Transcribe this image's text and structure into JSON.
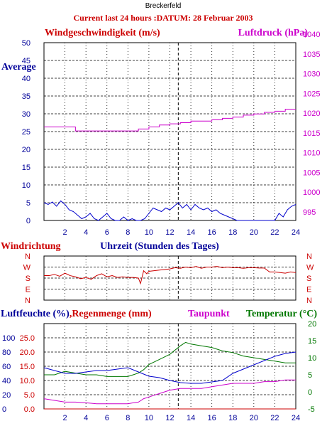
{
  "header": {
    "station": "Breckerfeld",
    "subtitle": "Current last 24 hours :DATUM: 28 Februar 2003"
  },
  "chart_data": [
    {
      "type": "line",
      "title": "",
      "ylabel_left": "Windgeschwindigkeit (m/s)",
      "ylabel_right": "Luftdruck (hPa)",
      "left_marker": "Average",
      "ylim_left": [
        0,
        50
      ],
      "ylim_right": [
        995,
        1040
      ],
      "ticks_left": [
        "0",
        "5",
        "10",
        "15",
        "20",
        "25",
        "30",
        "35",
        "40",
        "45",
        "50"
      ],
      "ticks_right": [
        "995",
        "1000",
        "1005",
        "1010",
        "1015",
        "1020",
        "1025",
        "1030",
        "1035",
        "1040"
      ],
      "xlim": [
        0,
        24
      ],
      "xticks": [
        "2",
        "4",
        "6",
        "8",
        "10",
        "12",
        "14",
        "16",
        "18",
        "20",
        "22",
        "24"
      ],
      "grid": true,
      "now_marker_x": 12.8,
      "series": [
        {
          "name": "Luftdruck (hPa)",
          "axis": "right",
          "color": "#cc00cc",
          "x": [
            0,
            1,
            2,
            2.8,
            3,
            3.3,
            3.5,
            4,
            5,
            6,
            7,
            8,
            8.5,
            9,
            10,
            11,
            12,
            13,
            14,
            15,
            16,
            17,
            18,
            19,
            20,
            21,
            22,
            23,
            24
          ],
          "y": [
            1016.5,
            1016.5,
            1016.5,
            1016.5,
            1015.5,
            1015.5,
            1015.5,
            1015.5,
            1015.5,
            1015.5,
            1015.5,
            1015.5,
            1015.5,
            1016,
            1016.5,
            1017,
            1017.3,
            1017.6,
            1018,
            1018,
            1018.3,
            1018.7,
            1019,
            1019.5,
            1019.8,
            1020.2,
            1020.5,
            1021,
            1021
          ]
        },
        {
          "name": "Windgeschwindigkeit (m/s)",
          "axis": "left",
          "color": "#0000cc",
          "x": [
            0,
            0.4,
            0.8,
            1.2,
            1.6,
            2,
            2.4,
            2.8,
            3.2,
            3.6,
            4,
            4.4,
            4.8,
            5.2,
            5.6,
            6,
            6.4,
            6.8,
            7.2,
            7.6,
            8,
            8.4,
            8.8,
            9.2,
            9.6,
            10,
            10.4,
            10.8,
            11.2,
            11.6,
            12,
            12.4,
            12.8,
            13.2,
            13.6,
            14,
            14.4,
            14.8,
            15.2,
            15.6,
            16,
            16.4,
            16.8,
            17.2,
            17.6,
            18,
            18.4,
            18.8,
            19.2,
            19.6,
            20,
            20.4,
            20.8,
            21.2,
            21.6,
            22,
            22.4,
            22.8,
            23.2,
            23.6,
            24
          ],
          "y": [
            5,
            4.5,
            5.2,
            4,
            5.5,
            4.5,
            3,
            2.5,
            1.5,
            0.5,
            1,
            2,
            0.5,
            0,
            1,
            2,
            0.5,
            0,
            0,
            1,
            0,
            0.5,
            0,
            0,
            0.5,
            2,
            3.5,
            3,
            2.5,
            3.5,
            3,
            4,
            5,
            3.5,
            4.5,
            3,
            4.5,
            3.5,
            3,
            3.5,
            2.5,
            3,
            2,
            1.5,
            1,
            0.5,
            0,
            0,
            0,
            0,
            0,
            0,
            0,
            0,
            0,
            0,
            2,
            1,
            3,
            4,
            4.5
          ]
        }
      ]
    },
    {
      "type": "line",
      "title": "",
      "ylabel_left": "Windrichtung",
      "xlabel": "Uhrzeit (Stunden des Tages)",
      "y_categories_top_to_bottom": [
        "N",
        "W",
        "S",
        "E",
        "N"
      ],
      "grid": true,
      "now_marker_x": 12.8,
      "series": [
        {
          "name": "Windrichtung",
          "color": "#cc0000",
          "x": [
            0,
            0.5,
            1,
            1.5,
            2,
            2.5,
            3,
            3.5,
            4,
            4.5,
            5,
            5.5,
            6,
            6.5,
            7,
            7.5,
            8,
            8.5,
            9,
            9.2,
            9.5,
            9.8,
            10,
            10.5,
            11,
            11.5,
            12,
            12.5,
            13,
            13.5,
            14,
            14.5,
            15,
            15.5,
            16,
            16.5,
            17,
            17.5,
            18,
            18.5,
            19,
            19.5,
            20,
            20.5,
            21,
            21.5,
            22,
            22.5,
            23,
            23.5,
            24
          ],
          "y_compass_deg": [
            200,
            200,
            210,
            195,
            220,
            200,
            190,
            175,
            185,
            170,
            200,
            215,
            190,
            200,
            185,
            190,
            185,
            185,
            180,
            135,
            240,
            215,
            235,
            240,
            245,
            250,
            255,
            265,
            260,
            270,
            265,
            275,
            260,
            270,
            270,
            275,
            265,
            270,
            265,
            265,
            260,
            265,
            265,
            262,
            262,
            230,
            230,
            225,
            220,
            230,
            225
          ]
        }
      ]
    },
    {
      "type": "line",
      "title": "",
      "ylabel_left": "Luftfeuchte (%),Regenmenge (mm)",
      "ylabel_right_1": "Taupunkt",
      "ylabel_right_2": "Temperatur (°C)",
      "ticks_humidity": [
        "0",
        "20",
        "40",
        "60",
        "80",
        "100"
      ],
      "ticks_rain": [
        "0.0",
        "5.0",
        "10.0",
        "15.0",
        "20.0",
        "25.0"
      ],
      "ticks_temperature": [
        "-5",
        "0",
        "5",
        "10",
        "15",
        "20"
      ],
      "ylim_humidity": [
        0,
        120
      ],
      "ylim_temperature": [
        -5,
        20
      ],
      "xlim": [
        0,
        24
      ],
      "xticks": [
        "2",
        "4",
        "6",
        "8",
        "10",
        "12",
        "14",
        "16",
        "18",
        "20",
        "22",
        "24"
      ],
      "grid": true,
      "now_marker_x": 12.8,
      "series": [
        {
          "name": "Temperatur (°C)",
          "axis": "temperature",
          "color": "#007700",
          "x": [
            0,
            1,
            2,
            3,
            4,
            5,
            6,
            7,
            8,
            8.5,
            9,
            9.5,
            10,
            11,
            12,
            13,
            13.5,
            14,
            15,
            16,
            17,
            18,
            19,
            20,
            21,
            22,
            23,
            24
          ],
          "y": [
            5,
            5,
            6,
            5.5,
            5,
            5,
            4.5,
            4.5,
            4.5,
            5,
            5.5,
            6.5,
            8,
            9.5,
            11,
            13.5,
            14.5,
            14,
            13.5,
            13,
            12,
            11.5,
            10.5,
            10,
            9.5,
            9,
            8.5,
            8.5
          ]
        },
        {
          "name": "Luftfeuchte (%)",
          "axis": "humidity",
          "color": "#0000cc",
          "x": [
            0,
            1,
            2,
            3,
            4,
            5,
            6,
            7,
            8,
            9,
            10,
            11,
            12,
            13,
            14,
            15,
            16,
            17,
            18,
            19,
            20,
            21,
            22,
            23,
            24
          ],
          "y": [
            58,
            54,
            50,
            50,
            52,
            54,
            54,
            56,
            58,
            52,
            46,
            44,
            40,
            37,
            36,
            36,
            38,
            40,
            50,
            56,
            62,
            68,
            74,
            78,
            80
          ]
        },
        {
          "name": "Taupunkt",
          "axis": "temperature",
          "color": "#cc00cc",
          "x": [
            0,
            1,
            2,
            3,
            4,
            5,
            6,
            7,
            8,
            8.5,
            9,
            9.5,
            10,
            11,
            12,
            13,
            14,
            15,
            16,
            17,
            18,
            19,
            20,
            21,
            22,
            23,
            24
          ],
          "y": [
            -2,
            -2.5,
            -3,
            -3,
            -3.2,
            -3.5,
            -3.5,
            -3.5,
            -3.5,
            -3.2,
            -3,
            -2,
            -1.5,
            -0.5,
            0.5,
            1,
            1,
            1,
            1.5,
            2,
            2.5,
            2.5,
            2.5,
            3,
            3,
            3.5,
            3.5
          ]
        },
        {
          "name": "Regenmenge (mm)",
          "axis": "rain",
          "color": "#cc0000",
          "x": [
            0,
            24
          ],
          "y": [
            0,
            0
          ]
        }
      ]
    }
  ]
}
